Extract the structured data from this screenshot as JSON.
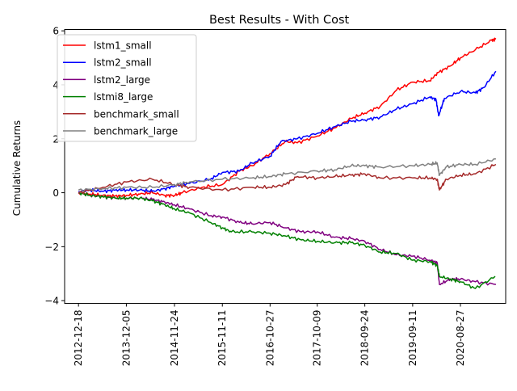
{
  "chart_data": {
    "type": "line",
    "title": "Best Results - With Cost",
    "xlabel": "",
    "ylabel": "Cumulative Returns",
    "x_type": "date",
    "xlim": [
      "2012-09-07",
      "2021-07-26"
    ],
    "ylim": [
      -4.1,
      6.05
    ],
    "xticks": [
      "2012-12-18",
      "2013-12-05",
      "2014-11-24",
      "2015-11-11",
      "2016-10-27",
      "2017-10-09",
      "2018-09-24",
      "2019-09-11",
      "2020-08-27"
    ],
    "yticks": [
      6,
      4,
      2,
      0,
      -2,
      -4
    ],
    "ytick_labels": [
      "6",
      "4",
      "2",
      "0",
      "−2",
      "−4"
    ],
    "grid": false,
    "legend_position": "top-left",
    "series": [
      {
        "name": "lstm1_small",
        "color": "#ff0000",
        "points": [
          [
            "2012-12-18",
            0.0
          ],
          [
            "2013-03-15",
            -0.05
          ],
          [
            "2013-06-15",
            -0.1
          ],
          [
            "2013-09-15",
            -0.12
          ],
          [
            "2013-12-05",
            -0.1
          ],
          [
            "2014-03-15",
            -0.05
          ],
          [
            "2014-06-15",
            0.0
          ],
          [
            "2014-09-15",
            -0.1
          ],
          [
            "2014-11-24",
            -0.1
          ],
          [
            "2015-01-20",
            0.0
          ],
          [
            "2015-06-15",
            0.2
          ],
          [
            "2015-11-11",
            0.3
          ],
          [
            "2016-03-15",
            0.8
          ],
          [
            "2016-06-15",
            1.0
          ],
          [
            "2016-10-27",
            1.45
          ],
          [
            "2017-02-15",
            1.9
          ],
          [
            "2017-05-15",
            1.85
          ],
          [
            "2017-10-09",
            2.1
          ],
          [
            "2018-02-15",
            2.4
          ],
          [
            "2018-06-15",
            2.75
          ],
          [
            "2018-09-24",
            2.95
          ],
          [
            "2019-01-15",
            3.2
          ],
          [
            "2019-05-15",
            3.8
          ],
          [
            "2019-09-11",
            4.1
          ],
          [
            "2020-01-15",
            4.15
          ],
          [
            "2020-03-15",
            4.45
          ],
          [
            "2020-06-15",
            4.7
          ],
          [
            "2020-08-27",
            5.0
          ],
          [
            "2020-12-15",
            5.3
          ],
          [
            "2021-04-15",
            5.65
          ],
          [
            "2021-05-15",
            5.7
          ]
        ]
      },
      {
        "name": "lstm2_small",
        "color": "#0000ff",
        "points": [
          [
            "2012-12-18",
            0.05
          ],
          [
            "2013-03-15",
            0.1
          ],
          [
            "2013-06-15",
            0.05
          ],
          [
            "2013-09-15",
            0.1
          ],
          [
            "2013-12-05",
            0.1
          ],
          [
            "2014-03-15",
            0.1
          ],
          [
            "2014-06-15",
            0.05
          ],
          [
            "2014-09-15",
            0.15
          ],
          [
            "2014-11-24",
            0.25
          ],
          [
            "2015-03-15",
            0.35
          ],
          [
            "2015-08-15",
            0.5
          ],
          [
            "2015-11-11",
            0.75
          ],
          [
            "2016-03-15",
            0.8
          ],
          [
            "2016-06-15",
            1.1
          ],
          [
            "2016-10-27",
            1.35
          ],
          [
            "2017-01-15",
            1.9
          ],
          [
            "2017-05-15",
            2.0
          ],
          [
            "2017-10-09",
            2.2
          ],
          [
            "2018-02-15",
            2.45
          ],
          [
            "2018-06-15",
            2.65
          ],
          [
            "2018-09-24",
            2.7
          ],
          [
            "2019-01-15",
            2.8
          ],
          [
            "2019-05-15",
            3.1
          ],
          [
            "2019-09-11",
            3.3
          ],
          [
            "2020-01-15",
            3.55
          ],
          [
            "2020-03-01",
            3.45
          ],
          [
            "2020-03-20",
            2.85
          ],
          [
            "2020-05-01",
            3.5
          ],
          [
            "2020-08-27",
            3.75
          ],
          [
            "2020-12-15",
            3.7
          ],
          [
            "2021-02-15",
            3.9
          ],
          [
            "2021-05-15",
            4.5
          ]
        ]
      },
      {
        "name": "lstm2_large",
        "color": "#800080",
        "points": [
          [
            "2012-12-18",
            0.0
          ],
          [
            "2013-03-15",
            -0.1
          ],
          [
            "2013-06-15",
            -0.15
          ],
          [
            "2013-09-15",
            -0.2
          ],
          [
            "2013-12-05",
            -0.2
          ],
          [
            "2014-03-15",
            -0.2
          ],
          [
            "2014-06-15",
            -0.25
          ],
          [
            "2014-09-15",
            -0.35
          ],
          [
            "2014-11-24",
            -0.45
          ],
          [
            "2015-03-15",
            -0.6
          ],
          [
            "2015-08-15",
            -0.85
          ],
          [
            "2015-11-11",
            -0.9
          ],
          [
            "2016-03-15",
            -1.1
          ],
          [
            "2016-06-15",
            -1.15
          ],
          [
            "2016-10-27",
            -1.1
          ],
          [
            "2017-02-15",
            -1.3
          ],
          [
            "2017-06-15",
            -1.45
          ],
          [
            "2017-10-09",
            -1.45
          ],
          [
            "2018-02-15",
            -1.65
          ],
          [
            "2018-06-15",
            -1.7
          ],
          [
            "2018-09-24",
            -1.8
          ],
          [
            "2019-01-15",
            -2.1
          ],
          [
            "2019-05-15",
            -2.3
          ],
          [
            "2019-09-11",
            -2.35
          ],
          [
            "2020-01-15",
            -2.5
          ],
          [
            "2020-03-10",
            -2.6
          ],
          [
            "2020-03-25",
            -3.4
          ],
          [
            "2020-06-15",
            -3.2
          ],
          [
            "2020-08-27",
            -3.2
          ],
          [
            "2020-12-15",
            -3.3
          ],
          [
            "2021-05-15",
            -3.4
          ]
        ]
      },
      {
        "name": "lstmi8_large",
        "color": "#008000",
        "points": [
          [
            "2012-12-18",
            0.0
          ],
          [
            "2013-03-15",
            -0.1
          ],
          [
            "2013-06-15",
            -0.15
          ],
          [
            "2013-09-15",
            -0.2
          ],
          [
            "2013-12-05",
            -0.2
          ],
          [
            "2014-03-15",
            -0.2
          ],
          [
            "2014-06-15",
            -0.3
          ],
          [
            "2014-09-15",
            -0.45
          ],
          [
            "2014-11-24",
            -0.6
          ],
          [
            "2015-03-15",
            -0.75
          ],
          [
            "2015-08-15",
            -1.1
          ],
          [
            "2015-11-11",
            -1.3
          ],
          [
            "2016-01-15",
            -1.45
          ],
          [
            "2016-06-15",
            -1.45
          ],
          [
            "2016-10-27",
            -1.5
          ],
          [
            "2017-02-15",
            -1.6
          ],
          [
            "2017-06-15",
            -1.75
          ],
          [
            "2017-10-09",
            -1.8
          ],
          [
            "2018-02-15",
            -1.85
          ],
          [
            "2018-06-15",
            -1.85
          ],
          [
            "2018-09-24",
            -1.95
          ],
          [
            "2019-01-15",
            -2.2
          ],
          [
            "2019-05-15",
            -2.25
          ],
          [
            "2019-09-11",
            -2.5
          ],
          [
            "2020-01-15",
            -2.55
          ],
          [
            "2020-03-10",
            -2.7
          ],
          [
            "2020-03-25",
            -3.1
          ],
          [
            "2020-06-15",
            -3.2
          ],
          [
            "2020-08-27",
            -3.3
          ],
          [
            "2020-12-15",
            -3.55
          ],
          [
            "2021-05-10",
            -3.1
          ]
        ]
      },
      {
        "name": "benchmark_small",
        "color": "#a52a2a",
        "points": [
          [
            "2012-12-18",
            0.0
          ],
          [
            "2013-06-15",
            0.2
          ],
          [
            "2013-12-05",
            0.4
          ],
          [
            "2014-06-15",
            0.5
          ],
          [
            "2014-11-24",
            0.3
          ],
          [
            "2015-03-15",
            0.2
          ],
          [
            "2015-11-11",
            0.1
          ],
          [
            "2016-06-15",
            0.2
          ],
          [
            "2016-10-27",
            0.2
          ],
          [
            "2017-02-15",
            0.3
          ],
          [
            "2017-05-15",
            0.6
          ],
          [
            "2017-10-09",
            0.55
          ],
          [
            "2018-02-15",
            0.6
          ],
          [
            "2018-06-15",
            0.65
          ],
          [
            "2018-09-24",
            0.7
          ],
          [
            "2019-01-15",
            0.55
          ],
          [
            "2019-09-11",
            0.55
          ],
          [
            "2020-01-15",
            0.55
          ],
          [
            "2020-03-10",
            0.5
          ],
          [
            "2020-03-25",
            0.1
          ],
          [
            "2020-05-15",
            0.5
          ],
          [
            "2020-08-27",
            0.65
          ],
          [
            "2020-12-15",
            0.7
          ],
          [
            "2021-05-15",
            1.05
          ]
        ]
      },
      {
        "name": "benchmark_large",
        "color": "#808080",
        "points": [
          [
            "2012-12-18",
            0.1
          ],
          [
            "2013-06-15",
            0.15
          ],
          [
            "2013-12-05",
            0.2
          ],
          [
            "2014-06-15",
            0.2
          ],
          [
            "2014-11-24",
            0.3
          ],
          [
            "2015-03-15",
            0.4
          ],
          [
            "2015-11-11",
            0.5
          ],
          [
            "2016-06-15",
            0.55
          ],
          [
            "2016-10-27",
            0.6
          ],
          [
            "2017-02-15",
            0.7
          ],
          [
            "2017-10-09",
            0.8
          ],
          [
            "2018-02-15",
            0.85
          ],
          [
            "2018-06-15",
            1.0
          ],
          [
            "2018-09-24",
            1.0
          ],
          [
            "2019-01-15",
            0.95
          ],
          [
            "2019-09-11",
            1.0
          ],
          [
            "2020-01-15",
            1.05
          ],
          [
            "2020-03-10",
            1.1
          ],
          [
            "2020-03-25",
            0.65
          ],
          [
            "2020-05-15",
            0.95
          ],
          [
            "2020-08-27",
            1.05
          ],
          [
            "2020-12-15",
            1.05
          ],
          [
            "2021-05-15",
            1.25
          ]
        ]
      }
    ]
  }
}
